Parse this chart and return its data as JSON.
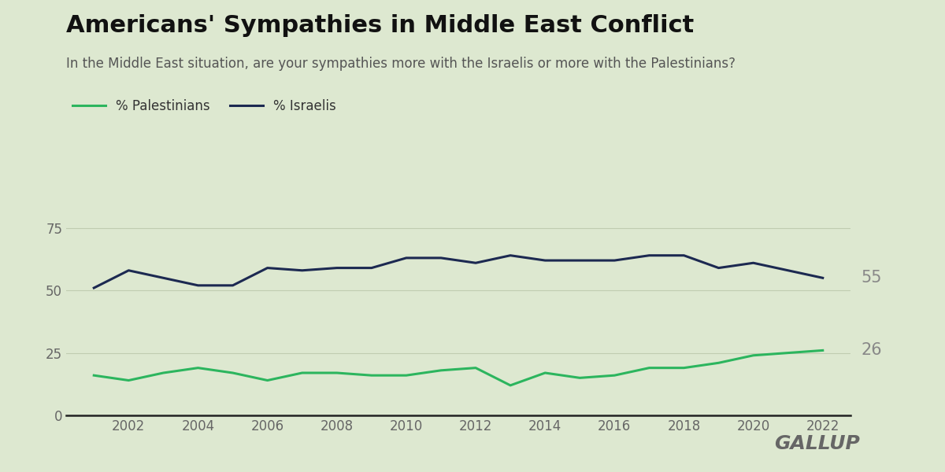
{
  "title": "Americans' Sympathies in Middle East Conflict",
  "subtitle": "In the Middle East situation, are your sympathies more with the Israelis or more with the Palestinians?",
  "background_color": "#dde8d0",
  "israelis_color": "#1c2951",
  "palestinians_color": "#2cb55e",
  "years": [
    2001,
    2002,
    2003,
    2004,
    2005,
    2006,
    2007,
    2008,
    2009,
    2010,
    2011,
    2012,
    2013,
    2014,
    2015,
    2016,
    2017,
    2018,
    2019,
    2020,
    2021,
    2022
  ],
  "israelis": [
    51,
    58,
    55,
    52,
    52,
    59,
    58,
    59,
    59,
    63,
    63,
    61,
    64,
    62,
    62,
    62,
    64,
    64,
    59,
    61,
    58,
    55
  ],
  "palestinians": [
    16,
    14,
    17,
    19,
    17,
    14,
    17,
    17,
    16,
    16,
    18,
    19,
    12,
    17,
    15,
    16,
    19,
    19,
    21,
    24,
    25,
    26
  ],
  "ylim": [
    0,
    85
  ],
  "yticks": [
    0,
    25,
    50,
    75
  ],
  "title_fontsize": 22,
  "subtitle_fontsize": 12,
  "tick_fontsize": 12,
  "line_width": 2.2,
  "legend_fontsize": 12,
  "end_label_israelis": "55",
  "end_label_palestinians": "26",
  "gallup_text": "GALLUP",
  "grid_color": "#c0ccb0",
  "axis_label_color": "#666666",
  "end_label_color": "#888888",
  "title_color": "#111111",
  "subtitle_color": "#555555",
  "gallup_color": "#666666"
}
